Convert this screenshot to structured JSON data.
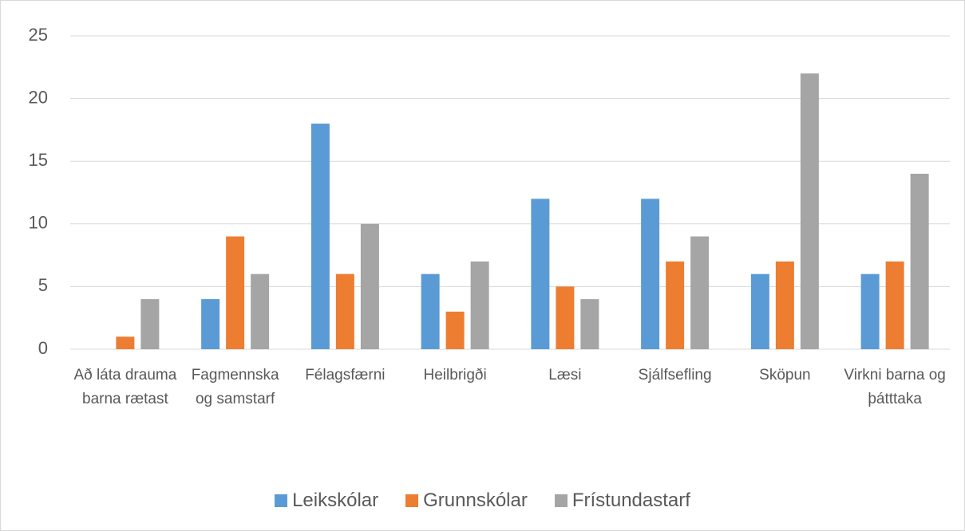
{
  "chart_data": {
    "type": "bar",
    "categories": [
      "Að láta drauma barna rætast",
      "Fagmennska og samstarf",
      "Félagsfærni",
      "Heilbrigði",
      "Læsi",
      "Sjálfsefling",
      "Sköpun",
      "Virkni barna og þátttaka"
    ],
    "series": [
      {
        "name": "Leikskólar",
        "color": "#5b9bd5",
        "values": [
          0,
          4,
          18,
          6,
          12,
          12,
          6,
          6
        ]
      },
      {
        "name": "Grunnskólar",
        "color": "#ed7d31",
        "values": [
          1,
          9,
          6,
          3,
          5,
          7,
          7,
          7
        ]
      },
      {
        "name": "Frístundastarf",
        "color": "#a5a5a5",
        "values": [
          4,
          6,
          10,
          7,
          4,
          9,
          22,
          14
        ]
      }
    ],
    "ylim": [
      0,
      25
    ],
    "yticks": [
      0,
      5,
      10,
      15,
      20,
      25
    ],
    "grid": true,
    "legend": "bottom"
  }
}
